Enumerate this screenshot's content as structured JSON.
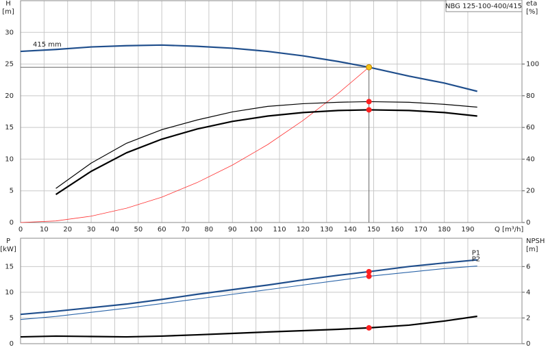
{
  "chart_data": [
    {
      "type": "line",
      "title": "NBG 125-100-400/415",
      "ylabel": [
        "H",
        "[m]"
      ],
      "y2label": [
        "eta",
        "[%]"
      ],
      "xlabel": "Q [m³/h]",
      "x": [
        0,
        15,
        30,
        45,
        60,
        75,
        90,
        105,
        120,
        135,
        148,
        165,
        180,
        194
      ],
      "xlim": [
        0,
        213
      ],
      "xticks": [
        0,
        10,
        20,
        30,
        40,
        50,
        60,
        70,
        80,
        90,
        100,
        110,
        120,
        130,
        140,
        150,
        160,
        170,
        180,
        190
      ],
      "ylim": [
        0,
        35
      ],
      "yticks": [
        0,
        5,
        10,
        15,
        20,
        25,
        30
      ],
      "y2lim": [
        0,
        140
      ],
      "y2ticks": [
        0,
        20,
        40,
        60,
        80,
        100
      ],
      "grid": true,
      "xtick_labels": true,
      "series": [
        {
          "name": "415 mm",
          "label": "start",
          "color": "#1f4e8c",
          "width": 2.2,
          "values": [
            27.0,
            27.3,
            27.7,
            27.9,
            28.0,
            27.8,
            27.5,
            27.0,
            26.3,
            25.4,
            24.5,
            23.1,
            22.0,
            20.7
          ]
        },
        {
          "color": "#ff3030",
          "width": 0.8,
          "values": [
            0,
            0.25,
            1.0,
            2.26,
            4.0,
            6.3,
            9.06,
            12.3,
            16.1,
            20.4,
            24.5,
            null,
            null,
            null
          ]
        },
        {
          "color": "#000000",
          "width": 1.2,
          "axis": "y2",
          "values": [
            null,
            21.5,
            37.5,
            50,
            58.6,
            64.7,
            69.8,
            73.3,
            75,
            75.9,
            76.3,
            75.9,
            74.6,
            72.8
          ]
        },
        {
          "color": "#000000",
          "width": 2.2,
          "axis": "y2",
          "values": [
            null,
            17.7,
            32.3,
            44,
            52.6,
            59,
            63.8,
            67.2,
            69.4,
            70.7,
            71.1,
            70.7,
            69.4,
            67.2
          ]
        },
        {
          "marker": "#f5c518",
          "crosshair": true,
          "values": [
            null,
            null,
            null,
            null,
            null,
            null,
            null,
            null,
            null,
            null,
            24.5,
            null,
            null,
            null
          ]
        },
        {
          "marker": "#ff2020",
          "axis": "y2",
          "values": [
            null,
            null,
            null,
            null,
            null,
            null,
            null,
            null,
            null,
            null,
            76.3,
            null,
            null,
            null
          ]
        },
        {
          "marker": "#ff2020",
          "axis": "y2",
          "values": [
            null,
            null,
            null,
            null,
            null,
            null,
            null,
            null,
            null,
            null,
            71.1,
            null,
            null,
            null
          ]
        }
      ]
    },
    {
      "type": "line",
      "ylabel": [
        "P",
        "[kW]"
      ],
      "y2label": [
        "NPSH",
        "[m]"
      ],
      "x": [
        0,
        15,
        30,
        45,
        60,
        75,
        90,
        105,
        120,
        135,
        148,
        165,
        180,
        194
      ],
      "xlim": [
        0,
        213
      ],
      "xticks": [
        0,
        10,
        20,
        30,
        40,
        50,
        60,
        70,
        80,
        90,
        100,
        110,
        120,
        130,
        140,
        150,
        160,
        170,
        180,
        190
      ],
      "ylim": [
        0,
        20.5
      ],
      "yticks": [
        0,
        5,
        10,
        15
      ],
      "y2lim": [
        0,
        8.2
      ],
      "y2ticks": [
        0,
        2,
        4,
        6
      ],
      "grid": true,
      "xtick_labels": false,
      "series": [
        {
          "name": "P1",
          "label": "end",
          "color": "#1f4e8c",
          "width": 2.2,
          "values": [
            5.7,
            6.3,
            7.0,
            7.7,
            8.6,
            9.6,
            10.5,
            11.4,
            12.4,
            13.3,
            14.0,
            15.0,
            15.7,
            16.3
          ]
        },
        {
          "name": "P2",
          "label": "end",
          "color": "#2a64a8",
          "width": 1.1,
          "values": [
            4.7,
            5.3,
            6.1,
            6.9,
            7.8,
            8.7,
            9.6,
            10.5,
            11.4,
            12.3,
            13.1,
            13.9,
            14.6,
            15.1
          ]
        },
        {
          "color": "#000000",
          "width": 2.2,
          "axis": "y2",
          "values": [
            0.53,
            0.59,
            0.56,
            0.53,
            0.59,
            0.69,
            0.8,
            0.91,
            1.01,
            1.12,
            1.23,
            1.44,
            1.76,
            2.13
          ]
        },
        {
          "marker": "#ff2020",
          "values": [
            null,
            null,
            null,
            null,
            null,
            null,
            null,
            null,
            null,
            null,
            14.0,
            null,
            null,
            null
          ]
        },
        {
          "marker": "#ff2020",
          "values": [
            null,
            null,
            null,
            null,
            null,
            null,
            null,
            null,
            null,
            null,
            13.1,
            null,
            null,
            null
          ]
        },
        {
          "marker": "#ff2020",
          "axis": "y2",
          "values": [
            null,
            null,
            null,
            null,
            null,
            null,
            null,
            null,
            null,
            null,
            1.23,
            null,
            null,
            null
          ]
        }
      ]
    }
  ]
}
